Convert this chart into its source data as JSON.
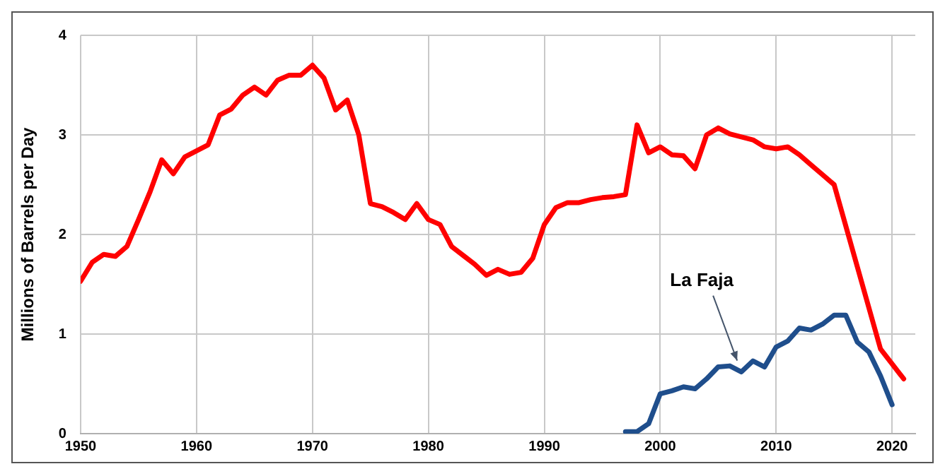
{
  "chart_data": {
    "type": "line",
    "ylabel": "Millions of Barrels per Day",
    "xlim": [
      1950,
      2022
    ],
    "xticks": [
      1950,
      1960,
      1970,
      1980,
      1990,
      2000,
      2010,
      2020
    ],
    "ylim": [
      0,
      4
    ],
    "yticks": [
      0,
      1,
      2,
      3,
      4
    ],
    "grid": true,
    "legend": false,
    "marker": "none",
    "line_style": "solid",
    "series": [
      {
        "color": "#ff0000",
        "x": [
          1950,
          1951,
          1952,
          1953,
          1954,
          1955,
          1956,
          1957,
          1958,
          1959,
          1960,
          1961,
          1962,
          1963,
          1964,
          1965,
          1966,
          1967,
          1968,
          1969,
          1970,
          1971,
          1972,
          1973,
          1974,
          1975,
          1976,
          1977,
          1978,
          1979,
          1980,
          1981,
          1982,
          1983,
          1984,
          1985,
          1986,
          1987,
          1988,
          1989,
          1990,
          1991,
          1992,
          1993,
          1994,
          1995,
          1996,
          1997,
          1998,
          1999,
          2000,
          2001,
          2002,
          2003,
          2004,
          2005,
          2006,
          2007,
          2008,
          2009,
          2010,
          2011,
          2012,
          2013,
          2014,
          2015,
          2019,
          2021
        ],
        "values": [
          1.53,
          1.72,
          1.8,
          1.78,
          1.88,
          2.15,
          2.43,
          2.75,
          2.61,
          2.78,
          2.84,
          2.9,
          3.2,
          3.26,
          3.4,
          3.48,
          3.4,
          3.55,
          3.6,
          3.6,
          3.7,
          3.57,
          3.25,
          3.35,
          3.0,
          2.31,
          2.28,
          2.22,
          2.15,
          2.31,
          2.15,
          2.1,
          1.88,
          1.79,
          1.7,
          1.59,
          1.65,
          1.6,
          1.62,
          1.76,
          2.1,
          2.27,
          2.32,
          2.32,
          2.35,
          2.37,
          2.38,
          2.4,
          3.1,
          2.82,
          2.88,
          2.8,
          2.79,
          2.66,
          3.0,
          3.07,
          3.01,
          2.98,
          2.95,
          2.88,
          2.86,
          2.88,
          2.8,
          2.7,
          2.6,
          2.5,
          0.85,
          0.55
        ]
      },
      {
        "name": "La Faja",
        "color": "#1f4e8c",
        "x": [
          1997,
          1998,
          1999,
          2000,
          2001,
          2002,
          2003,
          2004,
          2005,
          2006,
          2007,
          2008,
          2009,
          2010,
          2011,
          2012,
          2013,
          2014,
          2015,
          2016,
          2017,
          2018,
          2019,
          2020
        ],
        "values": [
          0.02,
          0.02,
          0.1,
          0.4,
          0.43,
          0.47,
          0.45,
          0.55,
          0.67,
          0.68,
          0.62,
          0.73,
          0.67,
          0.87,
          0.93,
          1.06,
          1.04,
          1.1,
          1.19,
          1.19,
          0.92,
          0.82,
          0.58,
          0.29
        ]
      }
    ]
  }
}
